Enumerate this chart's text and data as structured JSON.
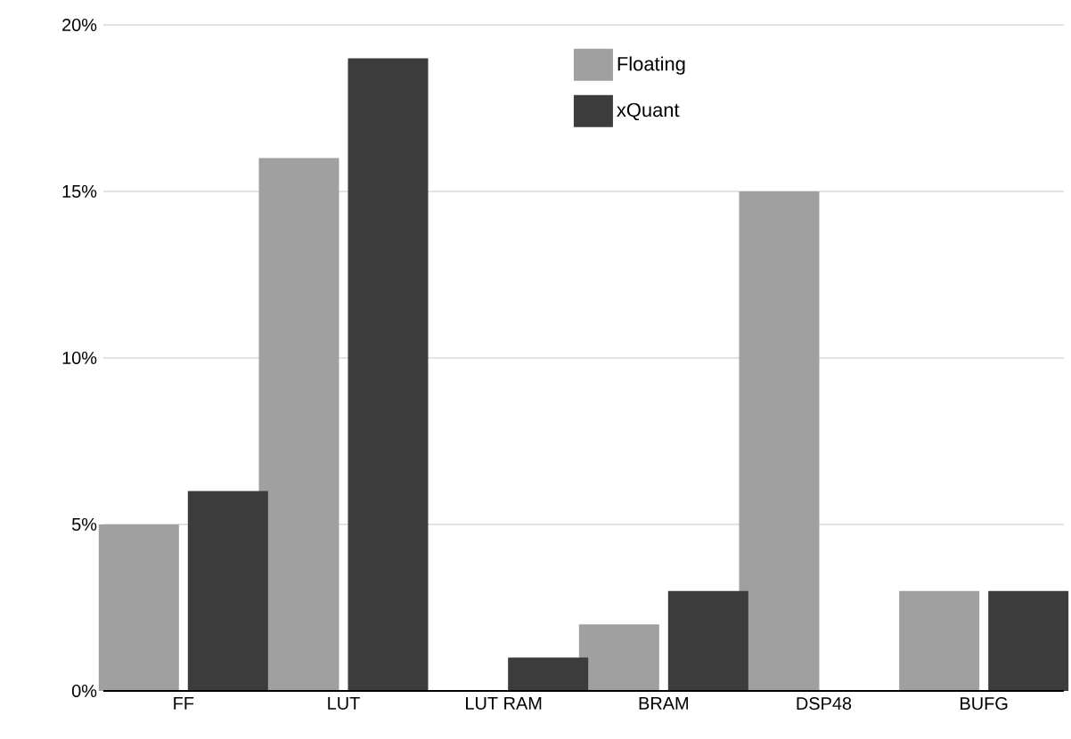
{
  "chart_data": {
    "type": "bar",
    "categories": [
      "FF",
      "LUT",
      "LUT RAM",
      "BRAM",
      "DSP48",
      "BUFG"
    ],
    "series": [
      {
        "name": "Floating",
        "color": "#a0a0a0",
        "values": [
          5,
          16,
          0,
          2,
          15,
          3
        ]
      },
      {
        "name": "xQuant",
        "color": "#3c3c3c",
        "values": [
          6,
          19,
          1,
          3,
          0,
          3
        ]
      }
    ],
    "ylim": [
      0,
      20
    ],
    "yticks": [
      {
        "value": 0,
        "label": "0%"
      },
      {
        "value": 5,
        "label": "5%"
      },
      {
        "value": 10,
        "label": "10%"
      },
      {
        "value": 15,
        "label": "15%"
      },
      {
        "value": 20,
        "label": "20%"
      }
    ],
    "grid": "y",
    "legend": "top"
  }
}
